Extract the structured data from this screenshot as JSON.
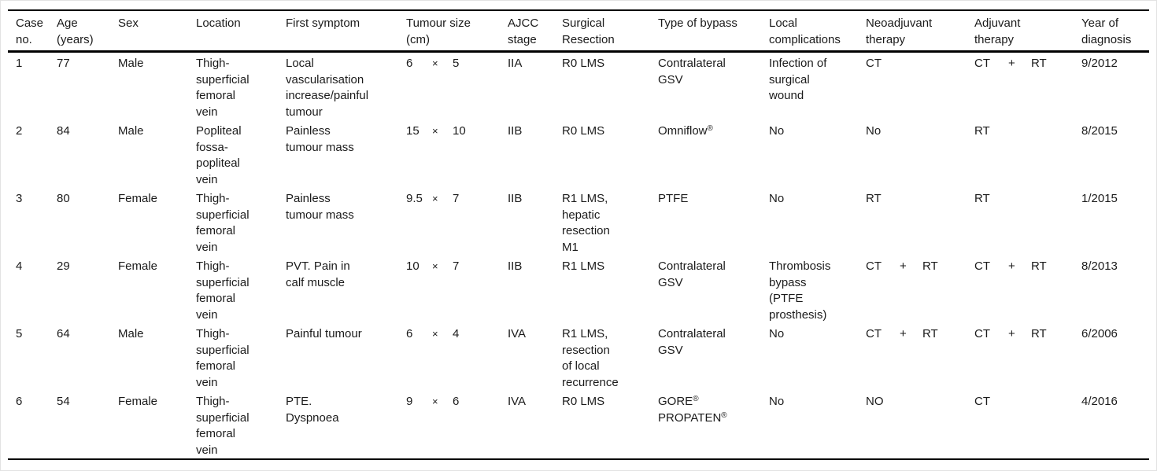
{
  "page": {
    "background_color": "#ffffff",
    "frame_border_color": "#e2e2e2",
    "text_color": "#1b1b1b",
    "rule_color": "#000000"
  },
  "table": {
    "columns": [
      {
        "id": "case_no",
        "label": "Case\nno."
      },
      {
        "id": "age",
        "label": "Age\n(years)"
      },
      {
        "id": "sex",
        "label": "Sex"
      },
      {
        "id": "location",
        "label": "Location"
      },
      {
        "id": "first_symptom",
        "label": "First symptom"
      },
      {
        "id": "tumour_size",
        "label": "Tumour size\n(cm)"
      },
      {
        "id": "ajcc_stage",
        "label": "AJCC\nstage"
      },
      {
        "id": "surgical_resection",
        "label": "Surgical\nResection"
      },
      {
        "id": "type_of_bypass",
        "label": "Type of bypass"
      },
      {
        "id": "local_complications",
        "label": "Local\ncomplications"
      },
      {
        "id": "neoadjuvant_therapy",
        "label": "Neoadjuvant\ntherapy"
      },
      {
        "id": "adjuvant_therapy",
        "label": "Adjuvant\ntherapy"
      },
      {
        "id": "year_of_diagnosis",
        "label": "Year of\ndiagnosis"
      }
    ],
    "rows": [
      {
        "case_no": "1",
        "age": "77",
        "sex": "Male",
        "location": "Thigh-\nsuperficial\nfemoral\nvein",
        "first_symptom": "Local\nvascularisation\nincrease/painful\ntumour",
        "tumour_size": [
          "6",
          "×",
          "5"
        ],
        "ajcc_stage": "IIA",
        "surgical_resection": "R0 LMS",
        "type_of_bypass": "Contralateral\nGSV",
        "local_complications": "Infection of\nsurgical\nwound",
        "neoadjuvant_therapy": "CT",
        "adjuvant_therapy": [
          "CT",
          "+",
          "RT"
        ],
        "year_of_diagnosis": "9/2012"
      },
      {
        "case_no": "2",
        "age": "84",
        "sex": "Male",
        "location": "Popliteal\nfossa-\npopliteal\nvein",
        "first_symptom": "Painless\ntumour mass",
        "tumour_size": [
          "15",
          "×",
          "10"
        ],
        "ajcc_stage": "IIB",
        "surgical_resection": "R0 LMS",
        "type_of_bypass": "Omniflow®",
        "local_complications": "No",
        "neoadjuvant_therapy": "No",
        "adjuvant_therapy": "RT",
        "year_of_diagnosis": "8/2015"
      },
      {
        "case_no": "3",
        "age": "80",
        "sex": "Female",
        "location": "Thigh-\nsuperficial\nfemoral\nvein",
        "first_symptom": "Painless\ntumour mass",
        "tumour_size": [
          "9.5",
          "×",
          "7"
        ],
        "ajcc_stage": "IIB",
        "surgical_resection": "R1 LMS,\nhepatic\nresection\nM1",
        "type_of_bypass": "PTFE",
        "local_complications": "No",
        "neoadjuvant_therapy": "RT",
        "adjuvant_therapy": "RT",
        "year_of_diagnosis": "1/2015"
      },
      {
        "case_no": "4",
        "age": "29",
        "sex": "Female",
        "location": "Thigh-\nsuperficial\nfemoral\nvein",
        "first_symptom": "PVT. Pain in\ncalf muscle",
        "tumour_size": [
          "10",
          "×",
          "7"
        ],
        "ajcc_stage": "IIB",
        "surgical_resection": "R1 LMS",
        "type_of_bypass": "Contralateral\nGSV",
        "local_complications": "Thrombosis\nbypass\n(PTFE\nprosthesis)",
        "neoadjuvant_therapy": [
          "CT",
          "+",
          "RT"
        ],
        "adjuvant_therapy": [
          "CT",
          "+",
          "RT"
        ],
        "year_of_diagnosis": "8/2013"
      },
      {
        "case_no": "5",
        "age": "64",
        "sex": "Male",
        "location": "Thigh-\nsuperficial\nfemoral\nvein",
        "first_symptom": "Painful tumour",
        "tumour_size": [
          "6",
          "×",
          "4"
        ],
        "ajcc_stage": "IVA",
        "surgical_resection": "R1 LMS,\nresection\nof local\nrecurrence",
        "type_of_bypass": "Contralateral\nGSV",
        "local_complications": "No",
        "neoadjuvant_therapy": [
          "CT",
          "+",
          "RT"
        ],
        "adjuvant_therapy": [
          "CT",
          "+",
          "RT"
        ],
        "year_of_diagnosis": "6/2006"
      },
      {
        "case_no": "6",
        "age": "54",
        "sex": "Female",
        "location": "Thigh-\nsuperficial\nfemoral\nvein",
        "first_symptom": "PTE.\nDyspnoea",
        "tumour_size": [
          "9",
          "×",
          "6"
        ],
        "ajcc_stage": "IVA",
        "surgical_resection": "R0 LMS",
        "type_of_bypass": "GORE®\nPROPATEN®",
        "local_complications": "No",
        "neoadjuvant_therapy": "NO",
        "adjuvant_therapy": "CT",
        "year_of_diagnosis": "4/2016"
      }
    ]
  }
}
